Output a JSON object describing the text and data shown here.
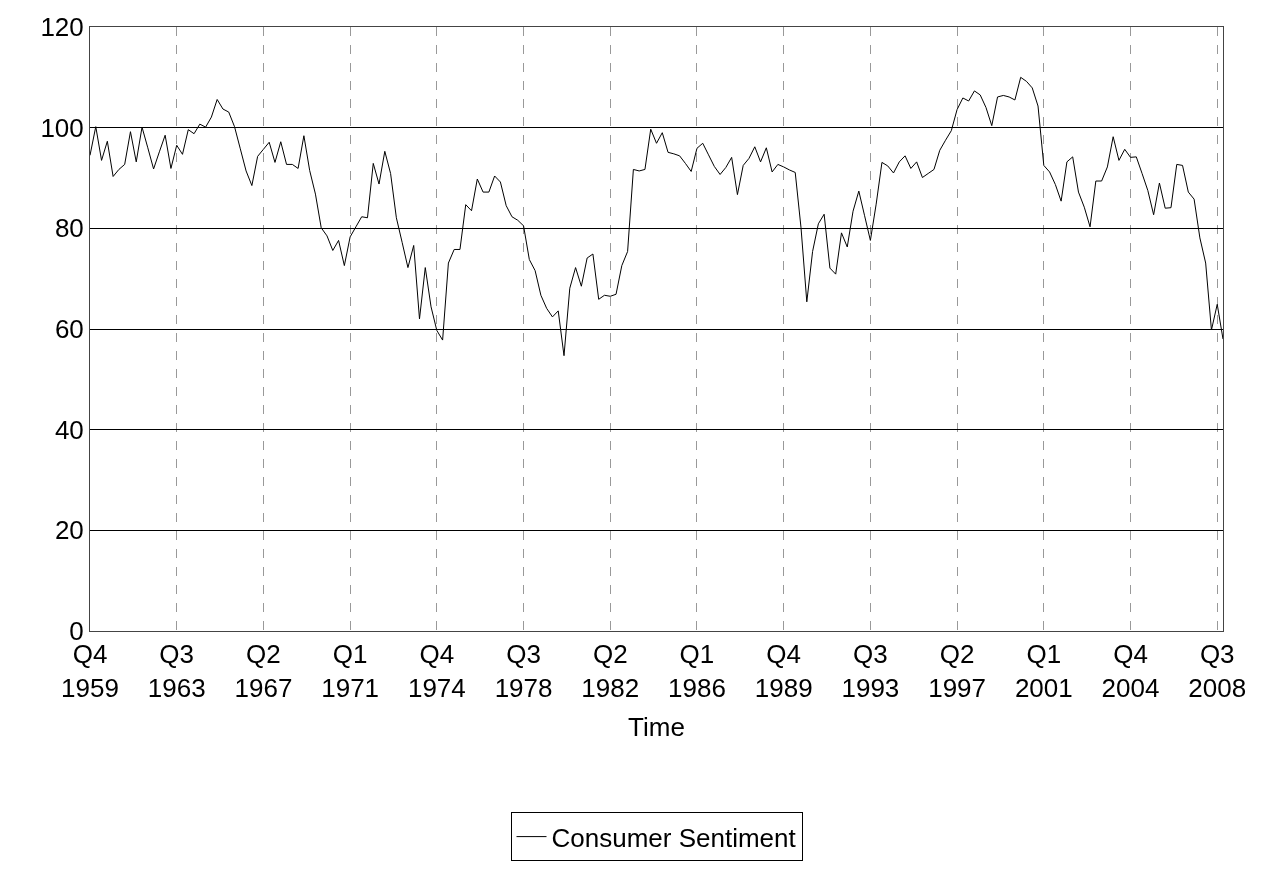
{
  "chart_data": {
    "type": "line",
    "xlabel": "Time",
    "categories": [
      "Q4\n1959",
      null,
      null,
      null,
      null,
      null,
      null,
      null,
      null,
      null,
      null,
      null,
      null,
      null,
      null,
      "Q3\n1963",
      null,
      null,
      null,
      null,
      null,
      null,
      null,
      null,
      null,
      null,
      null,
      null,
      null,
      null,
      "Q2\n1967",
      null,
      null,
      null,
      null,
      null,
      null,
      null,
      null,
      null,
      null,
      null,
      null,
      null,
      null,
      "Q1\n1971",
      null,
      null,
      null,
      null,
      null,
      null,
      null,
      null,
      null,
      null,
      null,
      null,
      null,
      null,
      "Q4\n1974",
      null,
      null,
      null,
      null,
      null,
      null,
      null,
      null,
      null,
      null,
      null,
      null,
      null,
      null,
      "Q3\n1978",
      null,
      null,
      null,
      null,
      null,
      null,
      null,
      null,
      null,
      null,
      null,
      null,
      null,
      null,
      "Q2\n1982",
      null,
      null,
      null,
      null,
      null,
      null,
      null,
      null,
      null,
      null,
      null,
      null,
      null,
      null,
      "Q1\n1986",
      null,
      null,
      null,
      null,
      null,
      null,
      null,
      null,
      null,
      null,
      null,
      null,
      null,
      null,
      "Q4\n1989",
      null,
      null,
      null,
      null,
      null,
      null,
      null,
      null,
      null,
      null,
      null,
      null,
      null,
      null,
      "Q3\n1993",
      null,
      null,
      null,
      null,
      null,
      null,
      null,
      null,
      null,
      null,
      null,
      null,
      null,
      null,
      "Q2\n1997",
      null,
      null,
      null,
      null,
      null,
      null,
      null,
      null,
      null,
      null,
      null,
      null,
      null,
      null,
      "Q1\n2001",
      null,
      null,
      null,
      null,
      null,
      null,
      null,
      null,
      null,
      null,
      null,
      null,
      null,
      null,
      "Q4\n2004",
      null,
      null,
      null,
      null,
      null,
      null,
      null,
      null,
      null,
      null,
      null,
      null,
      null,
      null,
      "Q3\n2008",
      null
    ],
    "series": [
      {
        "name": "Consumer Sentiment",
        "color": "#000000",
        "values": [
          94.5,
          100.2,
          93.5,
          97.3,
          90.3,
          91.7,
          92.7,
          99.2,
          93.2,
          100.1,
          96.0,
          91.8,
          95.2,
          98.5,
          91.9,
          96.5,
          94.7,
          99.6,
          98.8,
          100.7,
          100.1,
          102.1,
          105.6,
          103.7,
          103.1,
          100.2,
          95.8,
          91.4,
          88.5,
          94.3,
          95.7,
          97.1,
          93.1,
          97.2,
          92.7,
          92.7,
          91.9,
          98.4,
          91.5,
          86.8,
          80.1,
          78.5,
          75.6,
          77.6,
          72.6,
          78.3,
          80.3,
          82.3,
          82.1,
          92.9,
          88.8,
          95.3,
          90.9,
          82.1,
          77.2,
          72.2,
          76.6,
          62.0,
          72.2,
          64.4,
          59.7,
          57.8,
          73.1,
          75.8,
          75.8,
          84.7,
          83.5,
          89.8,
          87.2,
          87.2,
          90.4,
          89.2,
          84.5,
          82.3,
          81.6,
          80.5,
          73.8,
          71.6,
          66.7,
          64.1,
          62.4,
          63.6,
          54.7,
          68.1,
          72.2,
          68.5,
          74.1,
          74.9,
          65.9,
          66.7,
          66.5,
          66.9,
          72.6,
          75.4,
          91.7,
          91.4,
          91.7,
          99.7,
          96.9,
          99.0,
          95.1,
          94.8,
          94.4,
          92.9,
          91.3,
          95.9,
          96.9,
          94.6,
          92.3,
          90.7,
          92.1,
          94.1,
          86.7,
          92.5,
          93.9,
          96.2,
          93.2,
          96.0,
          91.2,
          92.7,
          92.2,
          91.6,
          91.1,
          80.1,
          65.4,
          75.4,
          80.9,
          82.8,
          72.1,
          70.9,
          79.1,
          76.3,
          83.4,
          87.4,
          82.5,
          77.6,
          84.8,
          93.1,
          92.4,
          91.0,
          93.2,
          94.4,
          91.9,
          93.2,
          90.1,
          90.9,
          91.7,
          95.5,
          97.5,
          99.4,
          103.6,
          105.9,
          105.3,
          107.3,
          106.5,
          104.0,
          100.4,
          106.1,
          106.4,
          106.1,
          105.5,
          110.0,
          109.2,
          107.9,
          104.3,
          92.5,
          91.2,
          88.7,
          85.4,
          93.2,
          94.2,
          87.2,
          84.2,
          80.3,
          89.4,
          89.4,
          92.2,
          98.2,
          93.5,
          95.7,
          94.1,
          94.2,
          90.9,
          87.5,
          82.7,
          89.0,
          84.0,
          84.1,
          92.7,
          92.5,
          87.2,
          85.8,
          78.1,
          73.1,
          59.8,
          64.9,
          58.0
        ]
      }
    ],
    "ylim": [
      0,
      120
    ],
    "yticks": [
      0,
      20,
      40,
      60,
      80,
      100,
      120
    ],
    "grid": true,
    "legend": "bottom",
    "marker": "none",
    "line_style": "solid"
  }
}
